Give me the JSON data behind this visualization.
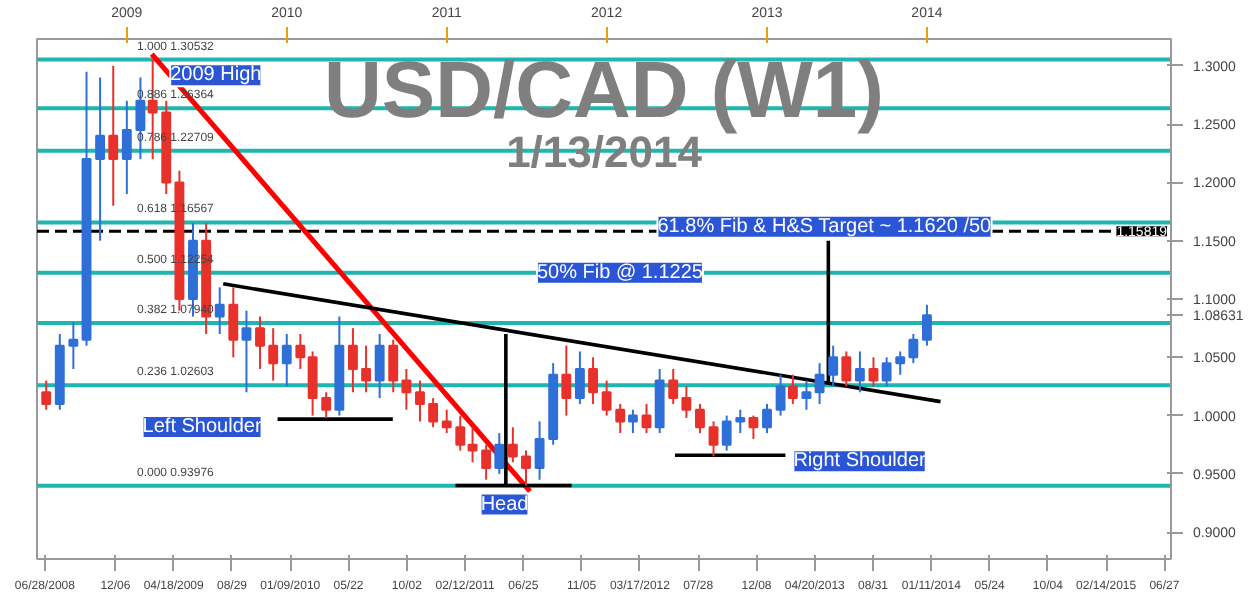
{
  "chart_data": {
    "type": "candlestick",
    "title": "USD/CAD (W1)",
    "subtitle": "1/13/2014",
    "x": [
      "2008-07-01",
      "2008-08-01",
      "2008-09-01",
      "2008-10-01",
      "2008-11-01",
      "2008-12-01",
      "2009-01-01",
      "2009-02-01",
      "2009-03-01",
      "2009-04-01",
      "2009-05-01",
      "2009-06-01",
      "2009-07-01",
      "2009-08-01",
      "2009-09-01",
      "2009-10-01",
      "2009-11-01",
      "2009-12-01",
      "2010-01-01",
      "2010-02-01",
      "2010-03-01",
      "2010-04-01",
      "2010-05-01",
      "2010-06-01",
      "2010-07-01",
      "2010-08-01",
      "2010-09-01",
      "2010-10-01",
      "2010-11-01",
      "2010-12-01",
      "2011-01-01",
      "2011-02-01",
      "2011-03-01",
      "2011-04-01",
      "2011-05-01",
      "2011-06-01",
      "2011-07-01",
      "2011-08-01",
      "2011-09-01",
      "2011-10-01",
      "2011-11-01",
      "2011-12-01",
      "2012-01-01",
      "2012-02-01",
      "2012-03-01",
      "2012-04-01",
      "2012-05-01",
      "2012-06-01",
      "2012-07-01",
      "2012-08-01",
      "2012-09-01",
      "2012-10-01",
      "2012-11-01",
      "2012-12-01",
      "2013-01-01",
      "2013-02-01",
      "2013-03-01",
      "2013-04-01",
      "2013-05-01",
      "2013-06-01",
      "2013-07-01",
      "2013-08-01",
      "2013-09-01",
      "2013-10-01",
      "2013-11-01",
      "2013-12-01",
      "2014-01-01"
    ],
    "ohlc": [
      [
        1.02,
        1.03,
        1.005,
        1.01
      ],
      [
        1.01,
        1.07,
        1.005,
        1.06
      ],
      [
        1.06,
        1.08,
        1.04,
        1.065
      ],
      [
        1.065,
        1.295,
        1.06,
        1.22
      ],
      [
        1.22,
        1.29,
        1.15,
        1.24
      ],
      [
        1.24,
        1.3,
        1.18,
        1.22
      ],
      [
        1.22,
        1.27,
        1.19,
        1.245
      ],
      [
        1.245,
        1.29,
        1.22,
        1.27
      ],
      [
        1.27,
        1.305,
        1.22,
        1.26
      ],
      [
        1.26,
        1.27,
        1.19,
        1.2
      ],
      [
        1.2,
        1.21,
        1.09,
        1.1
      ],
      [
        1.1,
        1.165,
        1.085,
        1.15
      ],
      [
        1.15,
        1.165,
        1.07,
        1.085
      ],
      [
        1.085,
        1.11,
        1.07,
        1.095
      ],
      [
        1.095,
        1.11,
        1.05,
        1.065
      ],
      [
        1.065,
        1.09,
        1.02,
        1.075
      ],
      [
        1.075,
        1.085,
        1.04,
        1.06
      ],
      [
        1.06,
        1.075,
        1.03,
        1.045
      ],
      [
        1.045,
        1.07,
        1.025,
        1.06
      ],
      [
        1.06,
        1.07,
        1.04,
        1.05
      ],
      [
        1.05,
        1.055,
        1.0,
        1.015
      ],
      [
        1.015,
        1.02,
        0.998,
        1.005
      ],
      [
        1.005,
        1.085,
        1.0,
        1.06
      ],
      [
        1.06,
        1.075,
        1.02,
        1.04
      ],
      [
        1.04,
        1.06,
        1.02,
        1.03
      ],
      [
        1.03,
        1.07,
        1.015,
        1.06
      ],
      [
        1.06,
        1.065,
        1.02,
        1.03
      ],
      [
        1.03,
        1.04,
        1.005,
        1.02
      ],
      [
        1.02,
        1.03,
        0.995,
        1.01
      ],
      [
        1.01,
        1.015,
        0.99,
        0.995
      ],
      [
        0.995,
        1.005,
        0.985,
        0.99
      ],
      [
        0.99,
        1.0,
        0.97,
        0.975
      ],
      [
        0.975,
        0.99,
        0.96,
        0.97
      ],
      [
        0.97,
        0.975,
        0.945,
        0.955
      ],
      [
        0.955,
        0.985,
        0.95,
        0.975
      ],
      [
        0.975,
        0.99,
        0.96,
        0.965
      ],
      [
        0.965,
        0.97,
        0.94,
        0.955
      ],
      [
        0.955,
        0.995,
        0.945,
        0.98
      ],
      [
        0.98,
        1.045,
        0.975,
        1.035
      ],
      [
        1.035,
        1.06,
        1.0,
        1.015
      ],
      [
        1.015,
        1.055,
        1.01,
        1.04
      ],
      [
        1.04,
        1.05,
        1.01,
        1.02
      ],
      [
        1.02,
        1.03,
        1.0,
        1.005
      ],
      [
        1.005,
        1.01,
        0.985,
        0.995
      ],
      [
        0.995,
        1.005,
        0.985,
        1.0
      ],
      [
        1.0,
        1.01,
        0.985,
        0.99
      ],
      [
        0.99,
        1.04,
        0.985,
        1.03
      ],
      [
        1.03,
        1.04,
        1.01,
        1.015
      ],
      [
        1.015,
        1.025,
        0.998,
        1.005
      ],
      [
        1.005,
        1.01,
        0.985,
        0.99
      ],
      [
        0.99,
        0.995,
        0.965,
        0.975
      ],
      [
        0.975,
        1.0,
        0.97,
        0.995
      ],
      [
        0.995,
        1.005,
        0.985,
        0.998
      ],
      [
        0.998,
        1.0,
        0.98,
        0.99
      ],
      [
        0.99,
        1.01,
        0.985,
        1.005
      ],
      [
        1.005,
        1.035,
        1.0,
        1.025
      ],
      [
        1.025,
        1.035,
        1.01,
        1.015
      ],
      [
        1.015,
        1.03,
        1.005,
        1.02
      ],
      [
        1.02,
        1.045,
        1.01,
        1.035
      ],
      [
        1.035,
        1.06,
        1.025,
        1.05
      ],
      [
        1.05,
        1.055,
        1.025,
        1.03
      ],
      [
        1.03,
        1.055,
        1.02,
        1.04
      ],
      [
        1.04,
        1.05,
        1.025,
        1.03
      ],
      [
        1.03,
        1.05,
        1.025,
        1.045
      ],
      [
        1.045,
        1.055,
        1.035,
        1.05
      ],
      [
        1.05,
        1.07,
        1.045,
        1.065
      ],
      [
        1.065,
        1.095,
        1.06,
        1.086
      ]
    ],
    "colors": [
      "#e8312a",
      "#2f6fd8",
      "#2f6fd8",
      "#2f6fd8",
      "#2f6fd8",
      "#e8312a",
      "#2f6fd8",
      "#2f6fd8",
      "#e8312a",
      "#e8312a",
      "#e8312a",
      "#2f6fd8",
      "#e8312a",
      "#2f6fd8",
      "#e8312a",
      "#2f6fd8",
      "#e8312a",
      "#e8312a",
      "#2f6fd8",
      "#e8312a",
      "#e8312a",
      "#e8312a",
      "#2f6fd8",
      "#e8312a",
      "#e8312a",
      "#2f6fd8",
      "#e8312a",
      "#e8312a",
      "#e8312a",
      "#e8312a",
      "#e8312a",
      "#e8312a",
      "#e8312a",
      "#e8312a",
      "#2f6fd8",
      "#e8312a",
      "#e8312a",
      "#2f6fd8",
      "#2f6fd8",
      "#e8312a",
      "#2f6fd8",
      "#e8312a",
      "#e8312a",
      "#e8312a",
      "#2f6fd8",
      "#e8312a",
      "#2f6fd8",
      "#e8312a",
      "#e8312a",
      "#e8312a",
      "#e8312a",
      "#2f6fd8",
      "#2f6fd8",
      "#e8312a",
      "#2f6fd8",
      "#2f6fd8",
      "#e8312a",
      "#2f6fd8",
      "#2f6fd8",
      "#2f6fd8",
      "#e8312a",
      "#2f6fd8",
      "#e8312a",
      "#2f6fd8",
      "#2f6fd8",
      "#2f6fd8",
      "#2f6fd8"
    ],
    "series": [
      {
        "type": "line",
        "color": "#ff0000",
        "x": [
          "2009-02-27",
          "2011-07-10"
        ],
        "values": [
          1.31,
          0.935
        ]
      },
      {
        "type": "line",
        "color": "#000000",
        "x": [
          "2009-08-09",
          "2014-02-01"
        ],
        "values": [
          1.113,
          1.012
        ]
      },
      {
        "type": "line",
        "color": "#000000",
        "x": [
          "2009-12-11",
          "2010-08-31"
        ],
        "values": [
          0.997,
          0.997
        ]
      },
      {
        "type": "line",
        "color": "#000000",
        "x": [
          "2011-01-21",
          "2011-10-13"
        ],
        "values": [
          0.94,
          0.94
        ]
      },
      {
        "type": "line",
        "color": "#000000",
        "x": [
          "2012-06-05",
          "2013-02-12"
        ],
        "values": [
          0.966,
          0.966
        ]
      },
      {
        "type": "line",
        "color": "#000000",
        "x": [
          "2011-05-16",
          "2011-05-16"
        ],
        "values": [
          0.94,
          1.07
        ]
      },
      {
        "type": "line",
        "color": "#000000",
        "x": [
          "2013-05-21",
          "2013-05-21"
        ],
        "values": [
          1.028,
          1.15
        ]
      }
    ],
    "ref_lines": [
      {
        "axis": "y",
        "value": 1.30532,
        "label": "1.000 1.30532",
        "color": "#1fb5b0",
        "line_style": "solid"
      },
      {
        "axis": "y",
        "value": 1.26364,
        "label": "0.886 1.26364",
        "color": "#1fb5b0",
        "line_style": "solid"
      },
      {
        "axis": "y",
        "value": 1.22709,
        "label": "0.786 1.22709",
        "color": "#1fb5b0",
        "line_style": "solid"
      },
      {
        "axis": "y",
        "value": 1.16567,
        "label": "0.618 1.16567",
        "color": "#1fb5b0",
        "line_style": "solid"
      },
      {
        "axis": "y",
        "value": 1.12254,
        "label": "0.500 1.12254",
        "color": "#1fb5b0",
        "line_style": "solid"
      },
      {
        "axis": "y",
        "value": 1.0794,
        "label": "0.382 1.07940",
        "color": "#1fb5b0",
        "line_style": "solid"
      },
      {
        "axis": "y",
        "value": 1.02603,
        "label": "0.236 1.02603",
        "color": "#1fb5b0",
        "line_style": "solid"
      },
      {
        "axis": "y",
        "value": 0.93976,
        "label": "0.000 0.93976",
        "color": "#1fb5b0",
        "line_style": "solid"
      },
      {
        "axis": "y",
        "value": 1.15819,
        "label": "1.15819",
        "color": "#000000",
        "line_style": "dashed"
      }
    ],
    "annotations": [
      {
        "text": "2009 High",
        "x": "2009-04-10",
        "y": 1.292
      },
      {
        "text": "61.8% Fib & H&S Target ~ 1.1620 /50",
        "x": "2012-04-26",
        "y": 1.162
      },
      {
        "text": "50% Fib @ 1.1225",
        "x": "2011-07-26",
        "y": 1.1225
      },
      {
        "text": "Left Shoulder",
        "x": "2009-12-11",
        "y": 0.997
      },
      {
        "text": "Head",
        "x": "2011-05-13",
        "y": 0.94
      },
      {
        "text": "Right Shoulder",
        "x": "2013-02-12",
        "y": 0.966
      }
    ],
    "xlim": [
      "2008-06-10",
      "2015-07-12"
    ],
    "xticks": [
      {
        "value": "2008-06-28",
        "label": "06/28/2008"
      },
      {
        "value": "2008-12-06",
        "label": "12/06"
      },
      {
        "value": "2009-04-18",
        "label": "04/18/2009"
      },
      {
        "value": "2009-08-29",
        "label": "08/29"
      },
      {
        "value": "2010-01-09",
        "label": "01/09/2010"
      },
      {
        "value": "2010-05-22",
        "label": "05/22"
      },
      {
        "value": "2010-10-02",
        "label": "10/02"
      },
      {
        "value": "2011-02-12",
        "label": "02/12/2011"
      },
      {
        "value": "2011-06-25",
        "label": "06/25"
      },
      {
        "value": "2011-11-05",
        "label": "11/05"
      },
      {
        "value": "2012-03-17",
        "label": "03/17/2012"
      },
      {
        "value": "2012-07-28",
        "label": "07/28"
      },
      {
        "value": "2012-12-08",
        "label": "12/08"
      },
      {
        "value": "2013-04-20",
        "label": "04/20/2013"
      },
      {
        "value": "2013-08-31",
        "label": "08/31"
      },
      {
        "value": "2014-01-11",
        "label": "01/11/2014"
      },
      {
        "value": "2014-05-24",
        "label": "05/24"
      },
      {
        "value": "2014-10-04",
        "label": "10/04"
      },
      {
        "value": "2015-02-14",
        "label": "02/14/2015"
      },
      {
        "value": "2015-06-27",
        "label": "06/27"
      }
    ],
    "x2lim": [
      "2008-06-10",
      "2015-07-12"
    ],
    "x2ticks": [
      {
        "value": "2009-01-01",
        "label": "2009"
      },
      {
        "value": "2010-01-01",
        "label": "2010"
      },
      {
        "value": "2011-01-01",
        "label": "2011"
      },
      {
        "value": "2012-01-01",
        "label": "2012"
      },
      {
        "value": "2013-01-01",
        "label": "2013"
      },
      {
        "value": "2014-01-01",
        "label": "2014"
      }
    ],
    "ylim": [
      0.877,
      1.323
    ],
    "yticks": [
      {
        "value": 0.9,
        "label": "0.9000"
      },
      {
        "value": 0.95,
        "label": "0.9500"
      },
      {
        "value": 1.0,
        "label": "1.0000"
      },
      {
        "value": 1.05,
        "label": "1.0500"
      },
      {
        "value": 1.08631,
        "label": "1.08631"
      },
      {
        "value": 1.1,
        "label": "1.1000"
      },
      {
        "value": 1.15,
        "label": "1.1500"
      },
      {
        "value": 1.2,
        "label": "1.2000"
      },
      {
        "value": 1.25,
        "label": "1.2500"
      },
      {
        "value": 1.3,
        "label": "1.3000"
      }
    ]
  }
}
